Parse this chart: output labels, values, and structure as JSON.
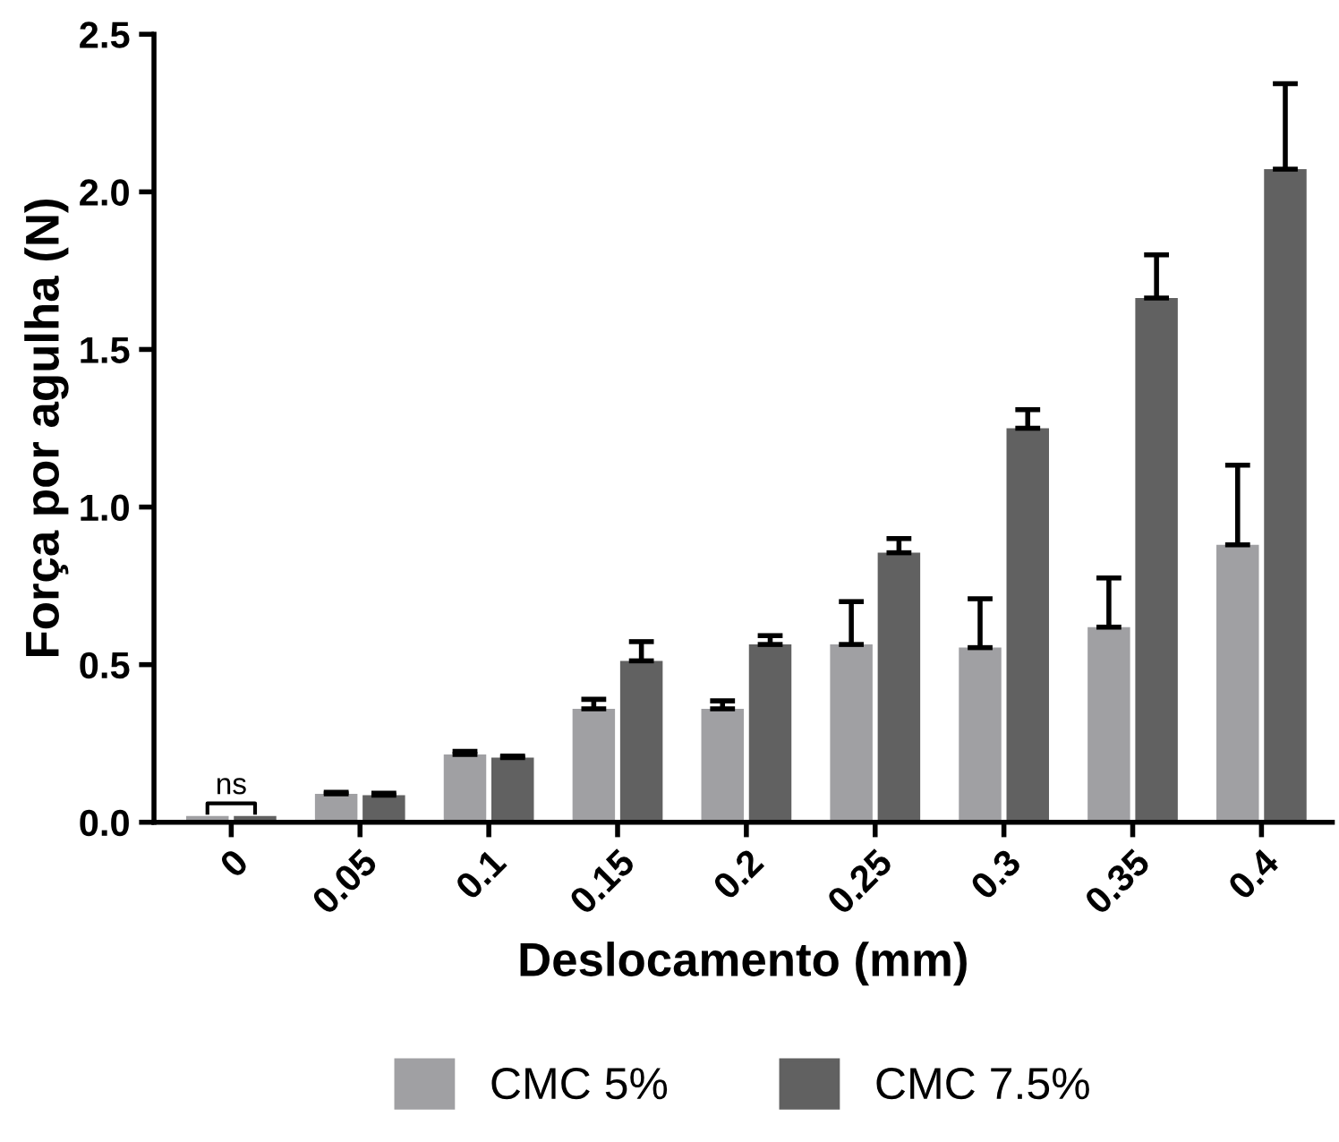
{
  "chart_data": {
    "type": "bar",
    "xlabel": "Deslocamento (mm)",
    "ylabel": "Força por agulha (N)",
    "categories": [
      "0",
      "0.05",
      "0.1",
      "0.15",
      "0.2",
      "0.25",
      "0.3",
      "0.35",
      "0.4"
    ],
    "series": [
      {
        "name": "CMC 5%",
        "color": "#a0a0a3",
        "values": [
          0.02,
          0.09,
          0.215,
          0.36,
          0.36,
          0.564,
          0.554,
          0.619,
          0.88
        ],
        "errors": [
          null,
          [
            0.09,
            0.095
          ],
          [
            0.215,
            0.225
          ],
          [
            0.36,
            0.39
          ],
          [
            0.36,
            0.385
          ],
          [
            0.564,
            0.7
          ],
          [
            0.554,
            0.709
          ],
          [
            0.619,
            0.775
          ],
          [
            0.88,
            1.133
          ]
        ]
      },
      {
        "name": "CMC 7.5%",
        "color": "#616161",
        "values": [
          0.02,
          0.086,
          0.205,
          0.512,
          0.564,
          0.855,
          1.25,
          1.663,
          2.072
        ],
        "errors": [
          null,
          [
            0.086,
            0.092
          ],
          [
            0.205,
            0.21
          ],
          [
            0.512,
            0.573
          ],
          [
            0.564,
            0.592
          ],
          [
            0.855,
            0.9
          ],
          [
            1.25,
            1.309
          ],
          [
            1.663,
            1.8
          ],
          [
            2.072,
            2.343
          ]
        ]
      }
    ],
    "ylim": [
      0,
      2.5
    ],
    "yticks": [
      {
        "value": 0,
        "label": "0.0"
      },
      {
        "value": 0.5,
        "label": "0.5"
      },
      {
        "value": 1,
        "label": "1.0"
      },
      {
        "value": 1.5,
        "label": "1.5"
      },
      {
        "value": 2,
        "label": "2.0"
      },
      {
        "value": 2.5,
        "label": "2.5"
      }
    ],
    "annotations": [
      "ns"
    ],
    "legend": "bottom",
    "grid": false
  }
}
